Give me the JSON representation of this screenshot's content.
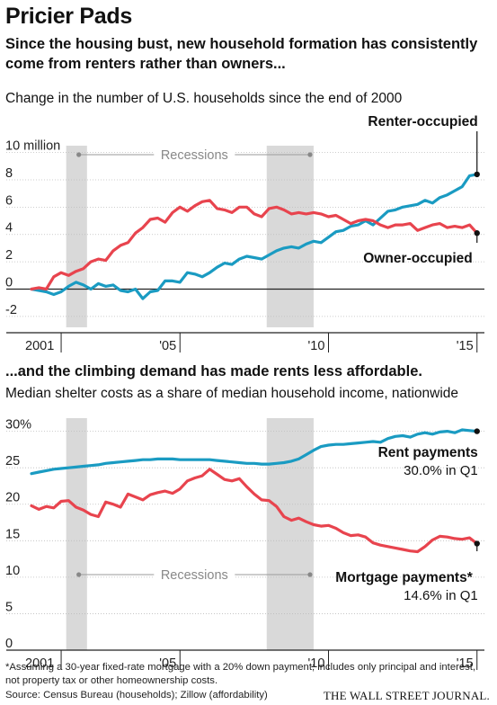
{
  "title": "Pricier Pads",
  "subtitle1": "Since the housing bust, new household formation has consistently come from renters rather than owners...",
  "subtitle2": "...and the climbing demand has made rents less affordable.",
  "footnote": "*Assuming a 30-year fixed-rate mortgage with a 20% down payment; includes only principal and interest, not property tax or other homeownership costs.",
  "source": "Source: Census Bureau (households); Zillow (affordability)",
  "publisher": "THE WALL STREET JOURNAL.",
  "colors": {
    "renter": "#1a9bc2",
    "owner": "#e8444e",
    "recession": "#d9d9d9"
  },
  "chart_data": [
    {
      "type": "line",
      "description": "Change in the number of U.S. households since the end of 2000",
      "ytick_labels": [
        "10 million",
        "8",
        "6",
        "4",
        "2",
        "0",
        "-2"
      ],
      "yticks": [
        10,
        8,
        6,
        4,
        2,
        0,
        -2
      ],
      "ylim": [
        -2.8,
        10.5
      ],
      "xlim": [
        2000.0,
        2015.25
      ],
      "xtick_labels": [
        "2001",
        "'05",
        "'10",
        "'15"
      ],
      "xticks": [
        2001,
        2005,
        2010,
        2015
      ],
      "recessions": [
        [
          2001.17,
          2001.87
        ],
        [
          2007.92,
          2009.5
        ]
      ],
      "recession_label": "Recessions",
      "series": [
        {
          "name": "Renter-occupied",
          "color": "#1a9bc2",
          "x": [
            2000.0,
            2000.25,
            2000.5,
            2000.75,
            2001.0,
            2001.25,
            2001.5,
            2001.75,
            2002.0,
            2002.25,
            2002.5,
            2002.75,
            2003.0,
            2003.25,
            2003.5,
            2003.75,
            2004.0,
            2004.25,
            2004.5,
            2004.75,
            2005.0,
            2005.25,
            2005.5,
            2005.75,
            2006.0,
            2006.25,
            2006.5,
            2006.75,
            2007.0,
            2007.25,
            2007.5,
            2007.75,
            2008.0,
            2008.25,
            2008.5,
            2008.75,
            2009.0,
            2009.25,
            2009.5,
            2009.75,
            2010.0,
            2010.25,
            2010.5,
            2010.75,
            2011.0,
            2011.25,
            2011.5,
            2011.75,
            2012.0,
            2012.25,
            2012.5,
            2012.75,
            2013.0,
            2013.25,
            2013.5,
            2013.75,
            2014.0,
            2014.25,
            2014.5,
            2014.75,
            2015.0
          ],
          "y": [
            0,
            -0.1,
            -0.2,
            -0.4,
            -0.2,
            0.2,
            0.5,
            0.3,
            0.0,
            0.4,
            0.2,
            0.3,
            -0.1,
            -0.2,
            0.0,
            -0.7,
            -0.2,
            -0.1,
            0.6,
            0.6,
            0.5,
            1.2,
            1.1,
            0.9,
            1.2,
            1.6,
            1.9,
            1.8,
            2.2,
            2.4,
            2.3,
            2.2,
            2.5,
            2.8,
            3.0,
            3.1,
            3.0,
            3.3,
            3.5,
            3.4,
            3.8,
            4.2,
            4.3,
            4.6,
            4.7,
            5.0,
            4.7,
            5.2,
            5.7,
            5.8,
            6.0,
            6.1,
            6.2,
            6.5,
            6.3,
            6.7,
            6.9,
            7.2,
            7.5,
            8.3,
            8.4
          ]
        },
        {
          "name": "Owner-occupied",
          "color": "#e8444e",
          "x": [
            2000.0,
            2000.25,
            2000.5,
            2000.75,
            2001.0,
            2001.25,
            2001.5,
            2001.75,
            2002.0,
            2002.25,
            2002.5,
            2002.75,
            2003.0,
            2003.25,
            2003.5,
            2003.75,
            2004.0,
            2004.25,
            2004.5,
            2004.75,
            2005.0,
            2005.25,
            2005.5,
            2005.75,
            2006.0,
            2006.25,
            2006.5,
            2006.75,
            2007.0,
            2007.25,
            2007.5,
            2007.75,
            2008.0,
            2008.25,
            2008.5,
            2008.75,
            2009.0,
            2009.25,
            2009.5,
            2009.75,
            2010.0,
            2010.25,
            2010.5,
            2010.75,
            2011.0,
            2011.25,
            2011.5,
            2011.75,
            2012.0,
            2012.25,
            2012.5,
            2012.75,
            2013.0,
            2013.25,
            2013.5,
            2013.75,
            2014.0,
            2014.25,
            2014.5,
            2014.75,
            2015.0
          ],
          "y": [
            0,
            0.1,
            0.0,
            0.9,
            1.2,
            1.0,
            1.3,
            1.5,
            2.0,
            2.2,
            2.1,
            2.8,
            3.2,
            3.4,
            4.1,
            4.5,
            5.1,
            5.2,
            4.9,
            5.6,
            6.0,
            5.7,
            6.1,
            6.4,
            6.5,
            5.9,
            5.8,
            5.6,
            6.0,
            6.0,
            5.5,
            5.3,
            5.9,
            6.0,
            5.8,
            5.5,
            5.6,
            5.5,
            5.6,
            5.5,
            5.3,
            5.4,
            5.1,
            4.8,
            5.0,
            5.1,
            5.0,
            4.7,
            4.5,
            4.7,
            4.7,
            4.8,
            4.3,
            4.5,
            4.7,
            4.8,
            4.5,
            4.6,
            4.5,
            4.7,
            4.1
          ]
        }
      ],
      "end_labels": {
        "renter": "Renter-occupied",
        "owner": "Owner-occupied"
      }
    },
    {
      "type": "line",
      "description": "Median shelter costs as a share of median household income, nationwide",
      "ytick_labels": [
        "30%",
        "25",
        "20",
        "15",
        "10",
        "5",
        "0"
      ],
      "yticks": [
        30,
        25,
        20,
        15,
        10,
        5,
        0
      ],
      "ylim": [
        0,
        31.8
      ],
      "xlim": [
        2000.0,
        2015.25
      ],
      "xtick_labels": [
        "2001",
        "'05",
        "'10",
        "'15"
      ],
      "xticks": [
        2001,
        2005,
        2010,
        2015
      ],
      "recessions": [
        [
          2001.17,
          2001.87
        ],
        [
          2007.92,
          2009.5
        ]
      ],
      "recession_label": "Recessions",
      "series": [
        {
          "name": "Rent payments",
          "color": "#1a9bc2",
          "x": [
            2000.0,
            2000.25,
            2000.5,
            2000.75,
            2001.0,
            2001.25,
            2001.5,
            2001.75,
            2002.0,
            2002.25,
            2002.5,
            2002.75,
            2003.0,
            2003.25,
            2003.5,
            2003.75,
            2004.0,
            2004.25,
            2004.5,
            2004.75,
            2005.0,
            2005.25,
            2005.5,
            2005.75,
            2006.0,
            2006.25,
            2006.5,
            2006.75,
            2007.0,
            2007.25,
            2007.5,
            2007.75,
            2008.0,
            2008.25,
            2008.5,
            2008.75,
            2009.0,
            2009.25,
            2009.5,
            2009.75,
            2010.0,
            2010.25,
            2010.5,
            2010.75,
            2011.0,
            2011.25,
            2011.5,
            2011.75,
            2012.0,
            2012.25,
            2012.5,
            2012.75,
            2013.0,
            2013.25,
            2013.5,
            2013.75,
            2014.0,
            2014.25,
            2014.5,
            2014.75,
            2015.0
          ],
          "y": [
            24.2,
            24.4,
            24.6,
            24.8,
            24.9,
            25.0,
            25.1,
            25.2,
            25.3,
            25.4,
            25.6,
            25.7,
            25.8,
            25.9,
            26.0,
            26.1,
            26.1,
            26.2,
            26.2,
            26.2,
            26.1,
            26.1,
            26.1,
            26.1,
            26.1,
            26.0,
            25.9,
            25.8,
            25.7,
            25.6,
            25.6,
            25.5,
            25.5,
            25.6,
            25.7,
            25.9,
            26.2,
            26.8,
            27.4,
            27.9,
            28.1,
            28.2,
            28.2,
            28.3,
            28.4,
            28.5,
            28.6,
            28.5,
            29.0,
            29.3,
            29.4,
            29.2,
            29.6,
            29.8,
            29.6,
            29.9,
            30.0,
            29.8,
            30.2,
            30.1,
            30.0
          ]
        },
        {
          "name": "Mortgage payments*",
          "color": "#e8444e",
          "x": [
            2000.0,
            2000.25,
            2000.5,
            2000.75,
            2001.0,
            2001.25,
            2001.5,
            2001.75,
            2002.0,
            2002.25,
            2002.5,
            2002.75,
            2003.0,
            2003.25,
            2003.5,
            2003.75,
            2004.0,
            2004.25,
            2004.5,
            2004.75,
            2005.0,
            2005.25,
            2005.5,
            2005.75,
            2006.0,
            2006.25,
            2006.5,
            2006.75,
            2007.0,
            2007.25,
            2007.5,
            2007.75,
            2008.0,
            2008.25,
            2008.5,
            2008.75,
            2009.0,
            2009.25,
            2009.5,
            2009.75,
            2010.0,
            2010.25,
            2010.5,
            2010.75,
            2011.0,
            2011.25,
            2011.5,
            2011.75,
            2012.0,
            2012.25,
            2012.5,
            2012.75,
            2013.0,
            2013.25,
            2013.5,
            2013.75,
            2014.0,
            2014.25,
            2014.5,
            2014.75,
            2015.0
          ],
          "y": [
            19.8,
            19.3,
            19.7,
            19.5,
            20.4,
            20.5,
            19.6,
            19.2,
            18.6,
            18.3,
            20.3,
            20.0,
            19.6,
            21.4,
            21.0,
            20.6,
            21.3,
            21.6,
            21.8,
            21.5,
            22.1,
            23.2,
            23.6,
            23.9,
            24.8,
            24.1,
            23.4,
            23.2,
            23.5,
            22.4,
            21.4,
            20.6,
            20.5,
            19.7,
            18.3,
            17.8,
            18.1,
            17.6,
            17.2,
            17.0,
            17.1,
            16.7,
            16.1,
            15.7,
            15.8,
            15.5,
            14.7,
            14.4,
            14.2,
            14.0,
            13.8,
            13.6,
            13.5,
            14.2,
            15.1,
            15.6,
            15.5,
            15.3,
            15.2,
            15.4,
            14.6
          ]
        }
      ],
      "end_labels": {
        "renter": "Rent payments",
        "renter_value": "30.0% in Q1",
        "owner": "Mortgage payments*",
        "owner_value": "14.6% in Q1"
      }
    }
  ]
}
